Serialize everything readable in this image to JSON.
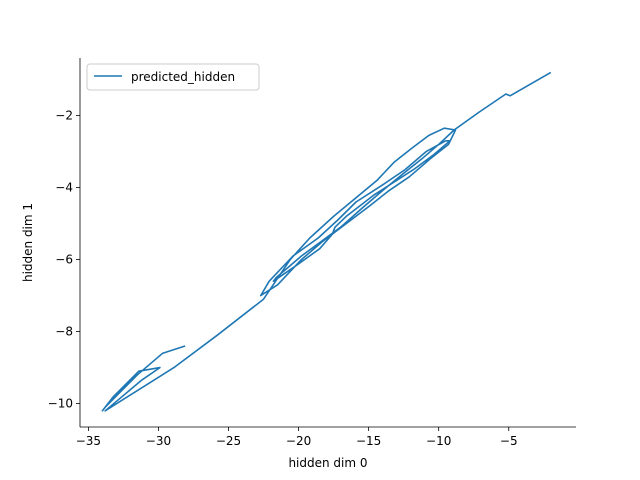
{
  "chart_data": {
    "type": "line",
    "title": "",
    "xlabel": "hidden dim 0",
    "ylabel": "hidden dim 1",
    "xlim": [
      -35.6,
      -0.2
    ],
    "ylim": [
      -10.65,
      -0.4
    ],
    "xticks": [
      -35,
      -30,
      -25,
      -20,
      -15,
      -10,
      -5
    ],
    "yticks": [
      -10,
      -8,
      -6,
      -4,
      -2
    ],
    "xtick_labels": [
      "−35",
      "−30",
      "−25",
      "−20",
      "−15",
      "−10",
      "−5"
    ],
    "ytick_labels": [
      "−10",
      "−8",
      "−6",
      "−4",
      "−2"
    ],
    "grid": false,
    "legend": "top-left",
    "color": "#1f77b4",
    "series": [
      {
        "name": "predicted_hidden",
        "x": [
          -28.1,
          -29.7,
          -31.5,
          -33.8,
          -34.0,
          -33.2,
          -31.4,
          -29.9,
          -31.2,
          -33.8,
          -28.9,
          -25.8,
          -22.5,
          -20.6,
          -19.2,
          -17.5,
          -15.8,
          -14.4,
          -13.2,
          -11.9,
          -10.7,
          -9.6,
          -8.8,
          -9.3,
          -10.6,
          -12.1,
          -13.6,
          -14.9,
          -16.6,
          -18.3,
          -19.8,
          -21.5,
          -22.7,
          -22.1,
          -20.4,
          -18.6,
          -17.2,
          -15.9,
          -14.1,
          -12.4,
          -10.9,
          -9.5,
          -9.2,
          -10.4,
          -11.8,
          -13.4,
          -14.6,
          -15.6,
          -16.6,
          -17.4,
          -17.6,
          -18.5,
          -20.3,
          -21.8,
          -21.6,
          -19.8,
          -18.4,
          -17.0,
          -15.4,
          -13.9,
          -12.5,
          -11.2,
          -10.0,
          -8.9,
          -7.1,
          -5.2,
          -4.9,
          -2.0
        ],
        "y": [
          -8.4,
          -8.6,
          -9.2,
          -10.1,
          -10.2,
          -9.8,
          -9.1,
          -9.0,
          -9.35,
          -10.2,
          -9.0,
          -8.1,
          -7.1,
          -6.0,
          -5.4,
          -4.8,
          -4.25,
          -3.8,
          -3.3,
          -2.9,
          -2.55,
          -2.35,
          -2.4,
          -2.8,
          -3.2,
          -3.7,
          -4.1,
          -4.5,
          -5.0,
          -5.5,
          -6.0,
          -6.7,
          -7.0,
          -6.6,
          -5.9,
          -5.4,
          -4.9,
          -4.4,
          -3.95,
          -3.5,
          -3.0,
          -2.7,
          -2.7,
          -3.1,
          -3.5,
          -3.9,
          -4.2,
          -4.5,
          -4.8,
          -5.1,
          -5.3,
          -5.7,
          -6.2,
          -6.6,
          -6.5,
          -5.9,
          -5.5,
          -5.1,
          -4.55,
          -4.05,
          -3.6,
          -3.2,
          -2.8,
          -2.4,
          -1.9,
          -1.4,
          -1.45,
          -0.8
        ]
      }
    ]
  }
}
